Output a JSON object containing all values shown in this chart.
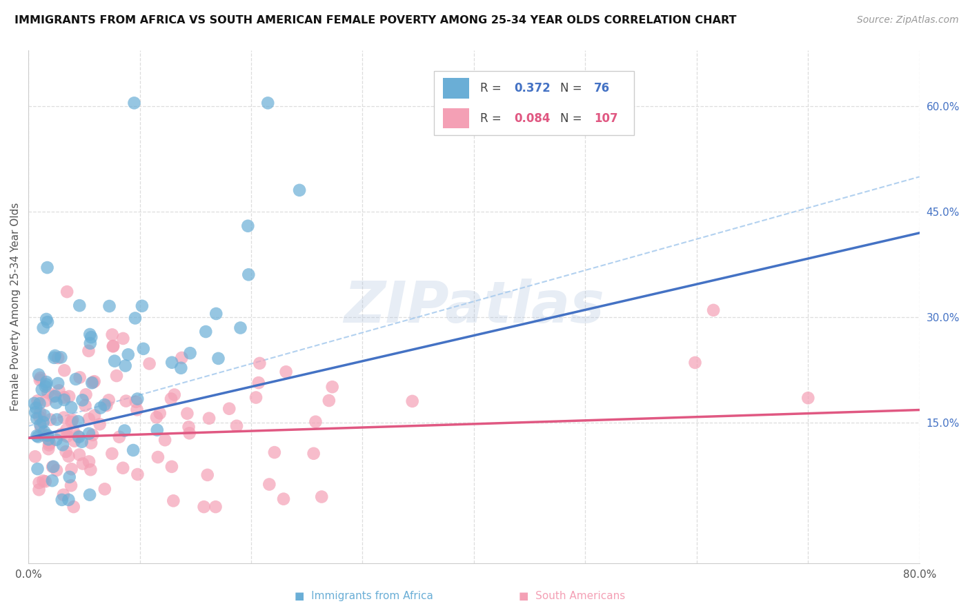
{
  "title": "IMMIGRANTS FROM AFRICA VS SOUTH AMERICAN FEMALE POVERTY AMONG 25-34 YEAR OLDS CORRELATION CHART",
  "source": "Source: ZipAtlas.com",
  "ylabel": "Female Poverty Among 25-34 Year Olds",
  "xlim": [
    0.0,
    0.8
  ],
  "ylim": [
    -0.05,
    0.68
  ],
  "xticks": [
    0.0,
    0.1,
    0.2,
    0.3,
    0.4,
    0.5,
    0.6,
    0.7,
    0.8
  ],
  "xtick_labels": [
    "0.0%",
    "",
    "",
    "",
    "",
    "",
    "",
    "",
    "80.0%"
  ],
  "ytick_right": [
    0.15,
    0.3,
    0.45,
    0.6
  ],
  "ytick_right_labels": [
    "15.0%",
    "30.0%",
    "45.0%",
    "60.0%"
  ],
  "africa_color": "#6aaed6",
  "sa_color": "#f4a0b5",
  "africa_line_color": "#4472c4",
  "sa_line_color": "#e05882",
  "dashed_line_color": "#aaccee",
  "africa_R": "0.372",
  "africa_N": "76",
  "sa_R": "0.084",
  "sa_N": "107",
  "africa_R_color": "#4472c4",
  "sa_R_color": "#e05882",
  "watermark_text": "ZIPatlas",
  "legend_label_africa": "Immigrants from Africa",
  "legend_label_sa": "South Americans",
  "africa_line_x0": 0.0,
  "africa_line_y0": 0.128,
  "africa_line_x1": 0.8,
  "africa_line_y1": 0.42,
  "sa_line_x0": 0.0,
  "sa_line_y0": 0.128,
  "sa_line_x1": 0.8,
  "sa_line_y1": 0.168,
  "dashed_line_x0": 0.0,
  "dashed_line_y0": 0.145,
  "dashed_line_x1": 0.8,
  "dashed_line_y1": 0.5,
  "grid_color": "#dddddd",
  "spine_color": "#cccccc",
  "text_color": "#555555",
  "title_color": "#111111",
  "source_color": "#999999"
}
